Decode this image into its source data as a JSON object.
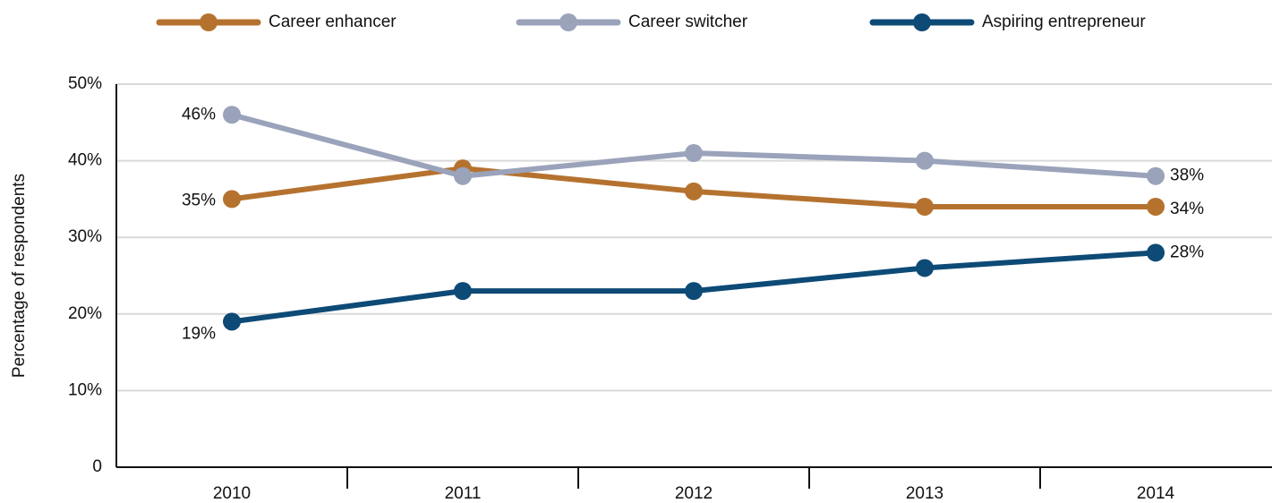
{
  "chart_data": {
    "type": "line",
    "y_label": "Percentage of respondents",
    "categories": [
      "2010",
      "2011",
      "2012",
      "2013",
      "2014"
    ],
    "series": [
      {
        "name": "Career enhancer",
        "color": "#b5722f",
        "values": [
          35,
          39,
          36,
          34,
          34
        ],
        "value_labels": [
          "35%",
          null,
          null,
          null,
          "34%"
        ]
      },
      {
        "name": "Career switcher",
        "color": "#9aa3ba",
        "values": [
          46,
          38,
          41,
          40,
          38
        ],
        "value_labels": [
          "46%",
          null,
          null,
          null,
          "38%"
        ]
      },
      {
        "name": "Aspiring entrepreneur",
        "color": "#0d4a76",
        "values": [
          19,
          23,
          23,
          26,
          28
        ],
        "value_labels": [
          "19%",
          null,
          null,
          null,
          "28%"
        ]
      }
    ],
    "ylim": [
      0,
      50
    ],
    "yticks": [
      0,
      {
        "value": 10,
        "label": "10%"
      },
      {
        "value": 20,
        "label": "20%"
      },
      {
        "value": 30,
        "label": "30%"
      },
      {
        "value": 40,
        "label": "40%"
      },
      {
        "value": 50,
        "label": "50%"
      }
    ],
    "grid": true,
    "legend": "top"
  }
}
